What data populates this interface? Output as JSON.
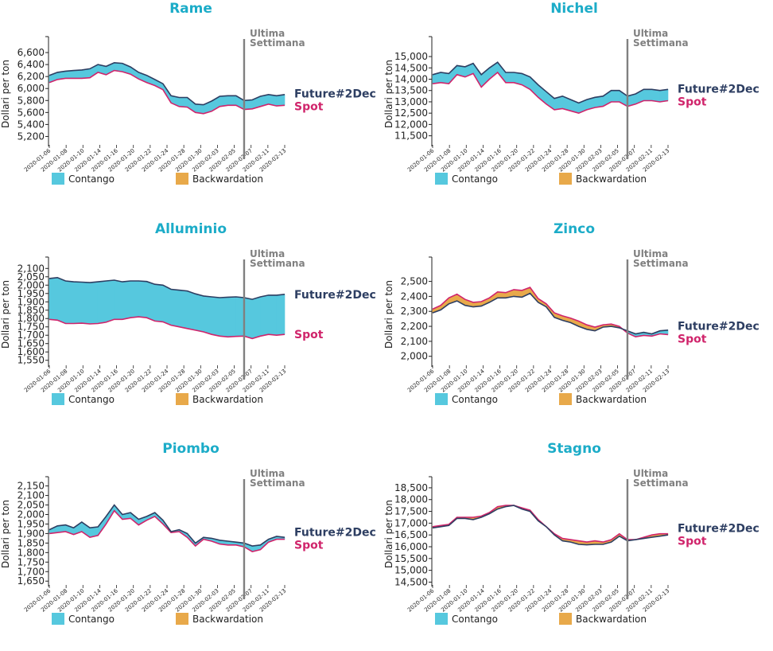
{
  "colors": {
    "title": "#1cacc8",
    "future": "#2d3e62",
    "spot": "#d0246b",
    "contango": "#56c8de",
    "backwardation": "#e8a94a",
    "marker_line": "#808080"
  },
  "common": {
    "ylabel": "Dollari per ton",
    "marker_line1": "Ultima",
    "marker_line2": "Settimana",
    "future_label": "Future#2Dec",
    "spot_label": "Spot",
    "legend_contango": "Contango",
    "legend_backwardation": "Backwardation",
    "xticks": [
      "2020-01-06",
      "2020-01-08",
      "2020-01-10",
      "2020-01-14",
      "2020-01-16",
      "2020-01-20",
      "2020-01-22",
      "2020-01-24",
      "2020-01-28",
      "2020-01-30",
      "2020-02-03",
      "2020-02-05",
      "2020-02-07",
      "2020-02-11",
      "2020-02-13"
    ]
  },
  "chart_data": [
    {
      "type": "area",
      "title": "Rame",
      "ylabel": "Dollari per ton",
      "ylim": [
        5060,
        6760
      ],
      "yticks": [
        5200,
        5400,
        5600,
        5800,
        6000,
        6200,
        6400,
        6600
      ],
      "x": [
        "2020-01-06",
        "2020-01-07",
        "2020-01-08",
        "2020-01-09",
        "2020-01-10",
        "2020-01-13",
        "2020-01-14",
        "2020-01-15",
        "2020-01-16",
        "2020-01-17",
        "2020-01-20",
        "2020-01-21",
        "2020-01-22",
        "2020-01-23",
        "2020-01-24",
        "2020-01-27",
        "2020-01-28",
        "2020-01-29",
        "2020-01-30",
        "2020-01-31",
        "2020-02-03",
        "2020-02-04",
        "2020-02-05",
        "2020-02-06",
        "2020-02-07",
        "2020-02-10",
        "2020-02-11",
        "2020-02-12",
        "2020-02-13",
        "2020-02-14"
      ],
      "marker_index": 24,
      "series": [
        {
          "name": "Future#2Dec",
          "values": [
            6220,
            6270,
            6290,
            6300,
            6310,
            6330,
            6400,
            6370,
            6430,
            6420,
            6360,
            6270,
            6220,
            6150,
            6080,
            5880,
            5850,
            5850,
            5740,
            5730,
            5790,
            5870,
            5880,
            5880,
            5800,
            5810,
            5870,
            5900,
            5880,
            5900
          ]
        },
        {
          "name": "Spot",
          "values": [
            6100,
            6150,
            6170,
            6170,
            6170,
            6180,
            6270,
            6230,
            6300,
            6280,
            6240,
            6160,
            6100,
            6050,
            5980,
            5760,
            5700,
            5690,
            5600,
            5580,
            5620,
            5700,
            5720,
            5720,
            5650,
            5660,
            5700,
            5740,
            5710,
            5720
          ]
        }
      ]
    },
    {
      "type": "area",
      "title": "Nichel",
      "ylabel": "Dollari per ton",
      "ylim": [
        11100,
        15600
      ],
      "yticks": [
        11500,
        12000,
        12500,
        13000,
        13500,
        14000,
        14500,
        15000
      ],
      "x": [
        "2020-01-06",
        "2020-01-07",
        "2020-01-08",
        "2020-01-09",
        "2020-01-10",
        "2020-01-13",
        "2020-01-14",
        "2020-01-15",
        "2020-01-16",
        "2020-01-17",
        "2020-01-20",
        "2020-01-21",
        "2020-01-22",
        "2020-01-23",
        "2020-01-24",
        "2020-01-27",
        "2020-01-28",
        "2020-01-29",
        "2020-01-30",
        "2020-01-31",
        "2020-02-03",
        "2020-02-04",
        "2020-02-05",
        "2020-02-06",
        "2020-02-07",
        "2020-02-10",
        "2020-02-11",
        "2020-02-12",
        "2020-02-13",
        "2020-02-14"
      ],
      "marker_index": 24,
      "series": [
        {
          "name": "Future#2Dec",
          "values": [
            14200,
            14300,
            14250,
            14600,
            14550,
            14700,
            14200,
            14500,
            14750,
            14300,
            14300,
            14250,
            14100,
            13750,
            13450,
            13150,
            13250,
            13100,
            12950,
            13100,
            13200,
            13250,
            13500,
            13500,
            13250,
            13350,
            13550,
            13550,
            13500,
            13550
          ]
        },
        {
          "name": "Spot",
          "values": [
            13800,
            13850,
            13800,
            14200,
            14100,
            14250,
            13650,
            14000,
            14300,
            13850,
            13850,
            13750,
            13550,
            13200,
            12900,
            12650,
            12700,
            12600,
            12500,
            12650,
            12750,
            12800,
            13000,
            13000,
            12800,
            12900,
            13050,
            13050,
            13000,
            13050
          ]
        }
      ]
    },
    {
      "type": "area",
      "title": "Alluminio",
      "ylabel": "Dollari per ton",
      "ylim": [
        1520,
        2130
      ],
      "yticks": [
        1550,
        1600,
        1650,
        1700,
        1750,
        1800,
        1850,
        1900,
        1950,
        2000,
        2050,
        2100
      ],
      "x": [
        "2020-01-06",
        "2020-01-07",
        "2020-01-08",
        "2020-01-09",
        "2020-01-10",
        "2020-01-13",
        "2020-01-14",
        "2020-01-15",
        "2020-01-16",
        "2020-01-17",
        "2020-01-20",
        "2020-01-21",
        "2020-01-22",
        "2020-01-23",
        "2020-01-24",
        "2020-01-27",
        "2020-01-28",
        "2020-01-29",
        "2020-01-30",
        "2020-01-31",
        "2020-02-03",
        "2020-02-04",
        "2020-02-05",
        "2020-02-06",
        "2020-02-07",
        "2020-02-10",
        "2020-02-11",
        "2020-02-12",
        "2020-02-13",
        "2020-02-14"
      ],
      "marker_index": 24,
      "series": [
        {
          "name": "Future#2Dec",
          "values": [
            2040,
            2045,
            2025,
            2020,
            2018,
            2015,
            2020,
            2025,
            2030,
            2020,
            2025,
            2025,
            2022,
            2005,
            2000,
            1975,
            1970,
            1965,
            1948,
            1935,
            1930,
            1925,
            1928,
            1930,
            1925,
            1915,
            1930,
            1940,
            1940,
            1945
          ]
        },
        {
          "name": "Spot",
          "values": [
            1795,
            1790,
            1770,
            1770,
            1772,
            1768,
            1770,
            1778,
            1795,
            1795,
            1805,
            1810,
            1805,
            1785,
            1780,
            1760,
            1750,
            1740,
            1730,
            1720,
            1705,
            1695,
            1690,
            1693,
            1695,
            1680,
            1695,
            1705,
            1700,
            1705
          ]
        }
      ]
    },
    {
      "type": "area",
      "title": "Zinco",
      "ylabel": "Dollari per ton",
      "ylim": [
        1940,
        2620
      ],
      "yticks": [
        2000,
        2100,
        2200,
        2300,
        2400,
        2500
      ],
      "x": [
        "2020-01-06",
        "2020-01-07",
        "2020-01-08",
        "2020-01-09",
        "2020-01-10",
        "2020-01-13",
        "2020-01-14",
        "2020-01-15",
        "2020-01-16",
        "2020-01-17",
        "2020-01-20",
        "2020-01-21",
        "2020-01-22",
        "2020-01-23",
        "2020-01-24",
        "2020-01-27",
        "2020-01-28",
        "2020-01-29",
        "2020-01-30",
        "2020-01-31",
        "2020-02-03",
        "2020-02-04",
        "2020-02-05",
        "2020-02-06",
        "2020-02-07",
        "2020-02-10",
        "2020-02-11",
        "2020-02-12",
        "2020-02-13",
        "2020-02-14"
      ],
      "marker_index": 24,
      "series": [
        {
          "name": "Future#2Dec",
          "values": [
            2290,
            2310,
            2350,
            2370,
            2340,
            2330,
            2335,
            2360,
            2390,
            2390,
            2400,
            2395,
            2420,
            2360,
            2330,
            2260,
            2240,
            2225,
            2200,
            2180,
            2170,
            2195,
            2200,
            2190,
            2170,
            2150,
            2160,
            2150,
            2170,
            2175
          ]
        },
        {
          "name": "Spot",
          "values": [
            2315,
            2340,
            2390,
            2415,
            2380,
            2360,
            2365,
            2390,
            2430,
            2425,
            2445,
            2440,
            2460,
            2385,
            2350,
            2290,
            2270,
            2255,
            2235,
            2210,
            2195,
            2210,
            2215,
            2200,
            2155,
            2130,
            2140,
            2135,
            2150,
            2145
          ]
        }
      ]
    },
    {
      "type": "area",
      "title": "Piombo",
      "ylabel": "Dollari per ton",
      "ylim": [
        1630,
        2165
      ],
      "yticks": [
        1650,
        1700,
        1750,
        1800,
        1850,
        1900,
        1950,
        2000,
        2050,
        2100,
        2150
      ],
      "x": [
        "2020-01-06",
        "2020-01-07",
        "2020-01-08",
        "2020-01-09",
        "2020-01-10",
        "2020-01-13",
        "2020-01-14",
        "2020-01-15",
        "2020-01-16",
        "2020-01-17",
        "2020-01-20",
        "2020-01-21",
        "2020-01-22",
        "2020-01-23",
        "2020-01-24",
        "2020-01-27",
        "2020-01-28",
        "2020-01-29",
        "2020-01-30",
        "2020-01-31",
        "2020-02-03",
        "2020-02-04",
        "2020-02-05",
        "2020-02-06",
        "2020-02-07",
        "2020-02-10",
        "2020-02-11",
        "2020-02-12",
        "2020-02-13",
        "2020-02-14"
      ],
      "marker_index": 24,
      "series": [
        {
          "name": "Future#2Dec",
          "values": [
            1920,
            1940,
            1945,
            1930,
            1960,
            1930,
            1935,
            1990,
            2050,
            2000,
            2010,
            1975,
            1990,
            2010,
            1970,
            1910,
            1920,
            1900,
            1850,
            1880,
            1875,
            1865,
            1860,
            1855,
            1850,
            1835,
            1840,
            1870,
            1885,
            1880
          ]
        },
        {
          "name": "Spot",
          "values": [
            1900,
            1905,
            1910,
            1895,
            1910,
            1880,
            1890,
            1950,
            2020,
            1975,
            1980,
            1945,
            1970,
            1990,
            1950,
            1905,
            1910,
            1880,
            1835,
            1870,
            1860,
            1845,
            1840,
            1840,
            1830,
            1805,
            1815,
            1855,
            1870,
            1870
          ]
        }
      ]
    },
    {
      "type": "area",
      "title": "Stagno",
      "ylabel": "Dollari per ton",
      "ylim": [
        14380,
        18700
      ],
      "yticks": [
        14500,
        15000,
        15500,
        16000,
        16500,
        17000,
        17500,
        18000,
        18500
      ],
      "x": [
        "2020-01-06",
        "2020-01-07",
        "2020-01-08",
        "2020-01-09",
        "2020-01-10",
        "2020-01-13",
        "2020-01-14",
        "2020-01-15",
        "2020-01-16",
        "2020-01-17",
        "2020-01-20",
        "2020-01-21",
        "2020-01-22",
        "2020-01-23",
        "2020-01-24",
        "2020-01-27",
        "2020-01-28",
        "2020-01-29",
        "2020-01-30",
        "2020-01-31",
        "2020-02-03",
        "2020-02-04",
        "2020-02-05",
        "2020-02-06",
        "2020-02-07",
        "2020-02-10",
        "2020-02-11",
        "2020-02-12",
        "2020-02-13",
        "2020-02-14"
      ],
      "marker_index": 24,
      "series": [
        {
          "name": "Future#2Dec",
          "values": [
            16800,
            16850,
            16900,
            17200,
            17200,
            17150,
            17250,
            17400,
            17600,
            17700,
            17750,
            17600,
            17500,
            17100,
            16850,
            16500,
            16250,
            16200,
            16100,
            16080,
            16100,
            16100,
            16200,
            16450,
            16250,
            16300,
            16350,
            16400,
            16450,
            16500
          ]
        },
        {
          "name": "Spot",
          "values": [
            16850,
            16900,
            16950,
            17250,
            17250,
            17250,
            17300,
            17450,
            17700,
            17750,
            17750,
            17650,
            17550,
            17150,
            16850,
            16550,
            16350,
            16300,
            16250,
            16200,
            16250,
            16200,
            16300,
            16550,
            16300,
            16300,
            16400,
            16500,
            16550,
            16550
          ]
        }
      ]
    }
  ]
}
